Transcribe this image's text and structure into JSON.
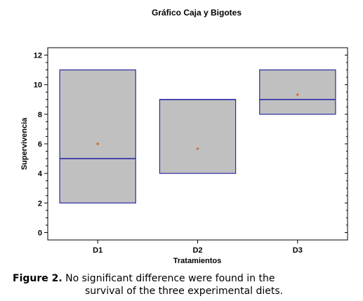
{
  "caption": {
    "label": "Figure 2.",
    "line1": " No significant difference were found in the",
    "line2": "survival of the three  experimental diets."
  },
  "chart_data": {
    "type": "boxplot",
    "title": "Gráfico Caja y Bigotes",
    "xlabel": "Tratamientos",
    "ylabel": "Supervivencia",
    "ylim": [
      -0.5,
      12.5
    ],
    "yticks": [
      0,
      2,
      4,
      6,
      8,
      10,
      12
    ],
    "grid": false,
    "categories": [
      "D1",
      "D2",
      "D3"
    ],
    "boxes": [
      {
        "category": "D1",
        "min": 2,
        "q1": 2,
        "median": 5,
        "q3": 11,
        "max": 11,
        "mean": 6
      },
      {
        "category": "D2",
        "min": 4,
        "q1": 4,
        "median": 9,
        "q3": 9,
        "max": 9,
        "mean": 5.67
      },
      {
        "category": "D3",
        "min": 8,
        "q1": 8,
        "median": 9,
        "q3": 11,
        "max": 11,
        "mean": 9.33
      }
    ],
    "colors": {
      "box_fill": "#c0c0c0",
      "box_stroke": "#2c2ca8",
      "mean_marker": "#d2691e"
    }
  }
}
